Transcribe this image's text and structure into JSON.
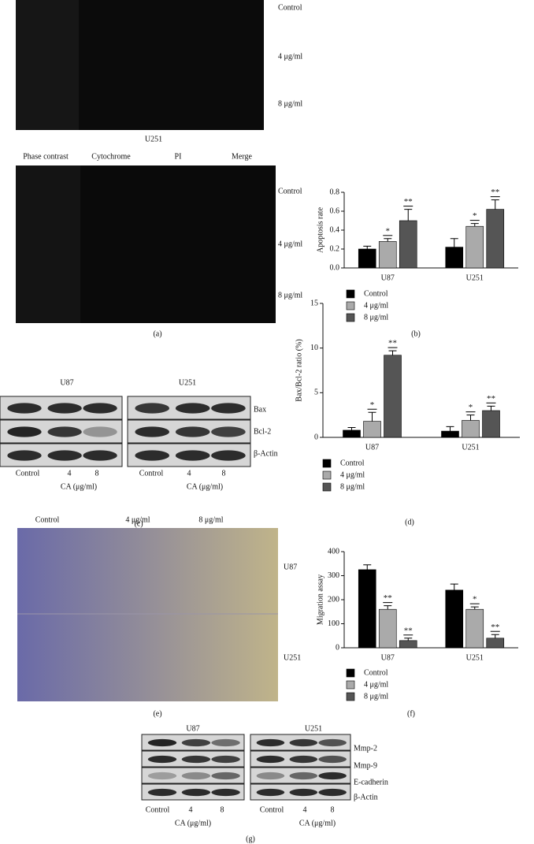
{
  "panel_a": {
    "top_rows": [
      "Control",
      "4 μg/ml",
      "8 μg/ml"
    ],
    "title": "U251",
    "columns": [
      "Phase contrast",
      "Cytochrome",
      "PI",
      "Merge"
    ],
    "rows": [
      "Control",
      "4 μg/ml",
      "8 μg/ml"
    ],
    "label": "(a)"
  },
  "panel_c": {
    "groups": [
      "U87",
      "U251"
    ],
    "proteins": [
      "Bax",
      "Bcl-2",
      "β-Actin"
    ],
    "doses": [
      "Control",
      "4",
      "8"
    ],
    "axis": "CA (μg/ml)",
    "label": "(c)"
  },
  "panel_e": {
    "columns": [
      "Control",
      "4 μg/ml",
      "8 μg/ml"
    ],
    "rows": [
      "U87",
      "U251"
    ],
    "label": "(e)"
  },
  "panel_g": {
    "groups": [
      "U87",
      "U251"
    ],
    "proteins": [
      "Mmp-2",
      "Mmp-9",
      "E-cadherin",
      "β-Actin"
    ],
    "doses": [
      "Control",
      "4",
      "8"
    ],
    "axis": "CA (μg/ml)",
    "label": "(g)"
  },
  "chart_data": [
    {
      "type": "bar",
      "label": "(b)",
      "y_label": "Apoptosis rate",
      "categories": [
        "U87",
        "U251"
      ],
      "ylim": [
        0,
        0.8
      ],
      "yticks": [
        {
          "value": 0,
          "label": "0.0"
        },
        0.2,
        0.4,
        0.6,
        0.8
      ],
      "series": [
        {
          "name": "Control",
          "color": "#000000",
          "values": [
            0.2,
            0.22
          ],
          "errors": [
            0.03,
            0.09
          ],
          "significance": [
            null,
            null
          ]
        },
        {
          "name": "4 μg/ml",
          "color": "#aaaaaa",
          "values": [
            0.28,
            0.44
          ],
          "errors": [
            0.03,
            0.03
          ],
          "significance": [
            "*",
            "*"
          ]
        },
        {
          "name": "8 μg/ml",
          "color": "#555555",
          "values": [
            0.5,
            0.62
          ],
          "errors": [
            0.12,
            0.1
          ],
          "significance": [
            "**",
            "**"
          ]
        }
      ]
    },
    {
      "type": "bar",
      "label": "(d)",
      "y_label": "Bax/Bcl-2 ratio (%)",
      "categories": [
        "U87",
        "U251"
      ],
      "ylim": [
        0,
        15
      ],
      "yticks": [
        0,
        5,
        10,
        15
      ],
      "series": [
        {
          "name": "Control",
          "color": "#000000",
          "values": [
            0.8,
            0.7
          ],
          "errors": [
            0.3,
            0.5
          ],
          "significance": [
            null,
            null
          ]
        },
        {
          "name": "4 μg/ml",
          "color": "#aaaaaa",
          "values": [
            1.8,
            1.9
          ],
          "errors": [
            1.0,
            0.6
          ],
          "significance": [
            "*",
            "*"
          ]
        },
        {
          "name": "8 μg/ml",
          "color": "#555555",
          "values": [
            9.2,
            3.0
          ],
          "errors": [
            0.5,
            0.5
          ],
          "significance": [
            "**",
            "**"
          ]
        }
      ]
    },
    {
      "type": "bar",
      "label": "(f)",
      "y_label": "Migration assay",
      "categories": [
        "U87",
        "U251"
      ],
      "ylim": [
        0,
        400
      ],
      "yticks": [
        0,
        100,
        200,
        300,
        400
      ],
      "series": [
        {
          "name": "Control",
          "color": "#000000",
          "values": [
            325,
            240
          ],
          "errors": [
            20,
            25
          ],
          "significance": [
            null,
            null
          ]
        },
        {
          "name": "4 μg/ml",
          "color": "#aaaaaa",
          "values": [
            160,
            160
          ],
          "errors": [
            15,
            10
          ],
          "significance": [
            "**",
            "*"
          ]
        },
        {
          "name": "8 μg/ml",
          "color": "#555555",
          "values": [
            30,
            40
          ],
          "errors": [
            10,
            15
          ],
          "significance": [
            "**",
            "**"
          ]
        }
      ]
    }
  ]
}
